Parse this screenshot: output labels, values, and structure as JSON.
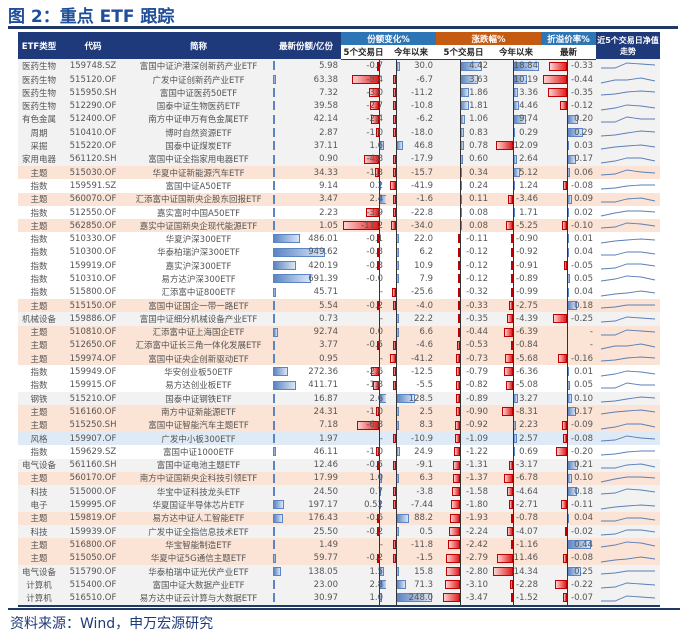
{
  "title": "图 2：重点 ETF 跟踪",
  "source": "资料来源：Wind，申万宏源研究",
  "headers": {
    "type": "ETF类型",
    "code": "代码",
    "name": "简称",
    "shares": "最新份额/亿份",
    "share_change": "份额变化%",
    "return": "涨跌幅%",
    "premium": "折溢价率%",
    "trend": "近5个交易日净值走势",
    "d5": "5个交易日",
    "ytd": "今年以来",
    "d5b": "5个交易日",
    "ytdb": "今年以来",
    "latest": "最新"
  },
  "colors": {
    "pos": "#5b84c4",
    "neg": "#e02020",
    "theme_row": "#fbe4d5"
  },
  "rows": [
    {
      "type": "医药生物",
      "code": "159748.SZ",
      "name": "富国中证沪港深创新药产业ETF",
      "shares": "5.98",
      "sh5": "-0.7",
      "shytd": "30.0",
      "r5": "4.42",
      "rytd": "18.84",
      "prem": "-0.33",
      "style": "gray"
    },
    {
      "type": "医药生物",
      "code": "515120.OF",
      "name": "广发中证创新药产业ETF",
      "shares": "63.38",
      "sh5": "-8.4",
      "shytd": "-6.7",
      "r5": "3.63",
      "rytd": "10.19",
      "prem": "-0.44",
      "style": "gray"
    },
    {
      "type": "医药生物",
      "code": "515950.SH",
      "name": "富国中证医药50ETF",
      "shares": "7.32",
      "sh5": "-3.0",
      "shytd": "-11.2",
      "r5": "1.86",
      "rytd": "3.36",
      "prem": "-0.35",
      "style": "gray"
    },
    {
      "type": "医药生物",
      "code": "512290.OF",
      "name": "国泰中证生物医药ETF",
      "shares": "39.58",
      "sh5": "-2.7",
      "shytd": "-10.8",
      "r5": "1.81",
      "rytd": "4.46",
      "prem": "-0.12",
      "style": "gray"
    },
    {
      "type": "有色金属",
      "code": "512400.OF",
      "name": "南方中证申万有色金属ETF",
      "shares": "42.14",
      "sh5": "-2.4",
      "shytd": "-6.2",
      "r5": "1.06",
      "rytd": "9.74",
      "prem": "0.20",
      "style": "gray"
    },
    {
      "type": "周期",
      "code": "510410.OF",
      "name": "博时自然资源ETF",
      "shares": "2.87",
      "sh5": "-1.0",
      "shytd": "-18.0",
      "r5": "0.83",
      "rytd": "0.29",
      "prem": "0.29",
      "style": "gray"
    },
    {
      "type": "采掘",
      "code": "515220.OF",
      "name": "国泰中证煤炭ETF",
      "shares": "37.11",
      "sh5": "1.6",
      "shytd": "46.8",
      "r5": "0.78",
      "rytd": "-12.09",
      "prem": "0.03",
      "style": "gray"
    },
    {
      "type": "家用电器",
      "code": "561120.SH",
      "name": "富国中证全指家用电器ETF",
      "shares": "0.90",
      "sh5": "-4.8",
      "shytd": "-17.9",
      "r5": "0.60",
      "rytd": "2.64",
      "prem": "0.17",
      "style": "gray"
    },
    {
      "type": "主题",
      "code": "515030.OF",
      "name": "华夏中证新能源汽车ETF",
      "shares": "34.33",
      "sh5": "-1.3",
      "shytd": "-15.7",
      "r5": "0.34",
      "rytd": "5.12",
      "prem": "0.06",
      "style": "theme"
    },
    {
      "type": "指数",
      "code": "159591.SZ",
      "name": "富国中证A50ETF",
      "shares": "9.14",
      "sh5": "0.2",
      "shytd": "-41.9",
      "r5": "0.24",
      "rytd": "1.24",
      "prem": "-0.08",
      "style": "white"
    },
    {
      "type": "主题",
      "code": "560070.OF",
      "name": "汇添富中证国新央企股东回报ETF",
      "shares": "3.47",
      "sh5": "2.4",
      "shytd": "-1.6",
      "r5": "0.11",
      "rytd": "-3.46",
      "prem": "0.09",
      "style": "theme"
    },
    {
      "type": "指数",
      "code": "512550.OF",
      "name": "嘉实富时中国A50ETF",
      "shares": "2.23",
      "sh5": "-3.9",
      "shytd": "-22.8",
      "r5": "0.08",
      "rytd": "1.71",
      "prem": "0.02",
      "style": "white"
    },
    {
      "type": "主题",
      "code": "562850.OF",
      "name": "嘉实中证国新央企现代能源ETF",
      "shares": "1.05",
      "sh5": "-11.2",
      "shytd": "-34.0",
      "r5": "0.08",
      "rytd": "-5.25",
      "prem": "-0.10",
      "style": "theme"
    },
    {
      "type": "指数",
      "code": "510330.OF",
      "name": "华夏沪深300ETF",
      "shares": "486.01",
      "sh5": "-0.1",
      "shytd": "22.0",
      "r5": "-0.11",
      "rytd": "-0.90",
      "prem": "0.01",
      "style": "white"
    },
    {
      "type": "指数",
      "code": "510300.OF",
      "name": "华泰柏瑞沪深300ETF",
      "shares": "949.62",
      "sh5": "-0.3",
      "shytd": "6.2",
      "r5": "-0.12",
      "rytd": "-0.92",
      "prem": "0.04",
      "style": "white"
    },
    {
      "type": "指数",
      "code": "159919.OF",
      "name": "嘉实沪深300ETF",
      "shares": "420.19",
      "sh5": "-0.3",
      "shytd": "10.9",
      "r5": "-0.12",
      "rytd": "-0.91",
      "prem": "-0.05",
      "style": "white"
    },
    {
      "type": "指数",
      "code": "510310.OF",
      "name": "易方达沪深300ETF",
      "shares": "691.39",
      "sh5": "-0.0",
      "shytd": "7.9",
      "r5": "-0.12",
      "rytd": "-0.89",
      "prem": "0.05",
      "style": "white"
    },
    {
      "type": "指数",
      "code": "515800.OF",
      "name": "汇添富中证800ETF",
      "shares": "45.71",
      "sh5": "-",
      "shytd": "-25.6",
      "r5": "-0.32",
      "rytd": "-0.99",
      "prem": "0.04",
      "style": "white"
    },
    {
      "type": "主题",
      "code": "515150.OF",
      "name": "富国中证国企一带一路ETF",
      "shares": "5.54",
      "sh5": "-0.2",
      "shytd": "-4.0",
      "r5": "-0.33",
      "rytd": "-2.75",
      "prem": "0.18",
      "style": "theme"
    },
    {
      "type": "机械设备",
      "code": "159886.OF",
      "name": "富国中证细分机械设备产业ETF",
      "shares": "0.73",
      "sh5": "-",
      "shytd": "22.2",
      "r5": "-0.35",
      "rytd": "-4.39",
      "prem": "-0.25",
      "style": "gray"
    },
    {
      "type": "主题",
      "code": "510810.OF",
      "name": "汇添富中证上海国企ETF",
      "shares": "92.74",
      "sh5": "0.0",
      "shytd": "6.6",
      "r5": "-0.44",
      "rytd": "-6.39",
      "prem": "-",
      "style": "theme"
    },
    {
      "type": "主题",
      "code": "512650.OF",
      "name": "汇添富中证长三角一体化发展ETF",
      "shares": "3.77",
      "sh5": "-0.5",
      "shytd": "-4.6",
      "r5": "-0.53",
      "rytd": "-0.84",
      "prem": "-",
      "style": "theme"
    },
    {
      "type": "主题",
      "code": "159974.OF",
      "name": "富国中证央企创新驱动ETF",
      "shares": "0.95",
      "sh5": "-",
      "shytd": "-41.2",
      "r5": "-0.73",
      "rytd": "-5.68",
      "prem": "-0.16",
      "style": "theme"
    },
    {
      "type": "指数",
      "code": "159949.OF",
      "name": "华安创业板50ETF",
      "shares": "272.36",
      "sh5": "-2.6",
      "shytd": "-12.5",
      "r5": "-0.79",
      "rytd": "-6.36",
      "prem": "0.01",
      "style": "white"
    },
    {
      "type": "指数",
      "code": "159915.OF",
      "name": "易方达创业板ETF",
      "shares": "411.71",
      "sh5": "-1.8",
      "shytd": "-5.5",
      "r5": "-0.82",
      "rytd": "-5.08",
      "prem": "0.05",
      "style": "white"
    },
    {
      "type": "钢铁",
      "code": "515210.OF",
      "name": "国泰中证钢铁ETF",
      "shares": "16.87",
      "sh5": "2.6",
      "shytd": "128.5",
      "r5": "-0.89",
      "rytd": "3.27",
      "prem": "0.10",
      "style": "gray"
    },
    {
      "type": "主题",
      "code": "516160.OF",
      "name": "南方中证新能源ETF",
      "shares": "24.31",
      "sh5": "-1.0",
      "shytd": "2.5",
      "r5": "-0.90",
      "rytd": "-8.31",
      "prem": "0.17",
      "style": "theme"
    },
    {
      "type": "主题",
      "code": "515250.SH",
      "name": "富国中证智能汽车主题ETF",
      "shares": "7.18",
      "sh5": "-6.8",
      "shytd": "8.3",
      "r5": "-0.92",
      "rytd": "2.23",
      "prem": "-0.09",
      "style": "theme"
    },
    {
      "type": "风格",
      "code": "159907.OF",
      "name": "广发中小板300ETF",
      "shares": "1.97",
      "sh5": "-",
      "shytd": "-10.9",
      "r5": "-1.09",
      "rytd": "2.57",
      "prem": "-0.08",
      "style": "blue"
    },
    {
      "type": "指数",
      "code": "159629.SZ",
      "name": "富国中证1000ETF",
      "shares": "46.11",
      "sh5": "-1.0",
      "shytd": "24.9",
      "r5": "-1.22",
      "rytd": "0.69",
      "prem": "-0.20",
      "style": "white"
    },
    {
      "type": "电气设备",
      "code": "561160.SH",
      "name": "富国中证电池主题ETF",
      "shares": "12.46",
      "sh5": "-0.5",
      "shytd": "-9.1",
      "r5": "-1.31",
      "rytd": "-3.17",
      "prem": "0.21",
      "style": "gray"
    },
    {
      "type": "主题",
      "code": "560170.OF",
      "name": "南方中证国新央企科技引领ETF",
      "shares": "17.99",
      "sh5": "1.0",
      "shytd": "6.3",
      "r5": "-1.37",
      "rytd": "-6.78",
      "prem": "0.10",
      "style": "theme"
    },
    {
      "type": "科技",
      "code": "515000.OF",
      "name": "华宝中证科技龙头ETF",
      "shares": "24.50",
      "sh5": "0.7",
      "shytd": "-3.8",
      "r5": "-1.58",
      "rytd": "-4.64",
      "prem": "0.18",
      "style": "gray"
    },
    {
      "type": "电子",
      "code": "159995.OF",
      "name": "华夏国证半导体芯片ETF",
      "shares": "197.17",
      "sh5": "0.52",
      "shytd": "-7.44",
      "r5": "-1.80",
      "rytd": "-2.71",
      "prem": "-0.11",
      "style": "gray"
    },
    {
      "type": "主题",
      "code": "159819.OF",
      "name": "易方达中证人工智能ETF",
      "shares": "176.43",
      "sh5": "-0.6",
      "shytd": "88.2",
      "r5": "-1.93",
      "rytd": "-0.78",
      "prem": "0.04",
      "style": "theme"
    },
    {
      "type": "科技",
      "code": "159939.OF",
      "name": "广发中证全指信息技术ETF",
      "shares": "25.50",
      "sh5": "-0.2",
      "shytd": "0.5",
      "r5": "-2.24",
      "rytd": "-4.07",
      "prem": "-0.02",
      "style": "gray"
    },
    {
      "type": "主题",
      "code": "516800.OF",
      "name": "华宝智能制造ETF",
      "shares": "1.49",
      "sh5": "-",
      "shytd": "-11.8",
      "r5": "-2.42",
      "rytd": "-1.16",
      "prem": "0.44",
      "style": "theme"
    },
    {
      "type": "主题",
      "code": "515050.OF",
      "name": "华夏中证5G通信主题ETF",
      "shares": "59.77",
      "sh5": "-0.2",
      "shytd": "-1.5",
      "r5": "-2.79",
      "rytd": "-11.46",
      "prem": "-0.08",
      "style": "theme"
    },
    {
      "type": "电气设备",
      "code": "515790.OF",
      "name": "华泰柏瑞中证光伏产业ETF",
      "shares": "138.05",
      "sh5": "1.5",
      "shytd": "15.8",
      "r5": "-2.80",
      "rytd": "-14.34",
      "prem": "0.25",
      "style": "gray"
    },
    {
      "type": "计算机",
      "code": "515400.OF",
      "name": "富国中证大数据产业ETF",
      "shares": "23.00",
      "sh5": "2.8",
      "shytd": "71.3",
      "r5": "-3.10",
      "rytd": "-2.28",
      "prem": "-0.22",
      "style": "gray"
    },
    {
      "type": "计算机",
      "code": "516510.OF",
      "name": "易方达中证云计算与大数据ETF",
      "shares": "30.97",
      "sh5": "1.0",
      "shytd": "248.0",
      "r5": "-3.47",
      "rytd": "-1.52",
      "prem": "-0.07",
      "style": "gray"
    }
  ]
}
